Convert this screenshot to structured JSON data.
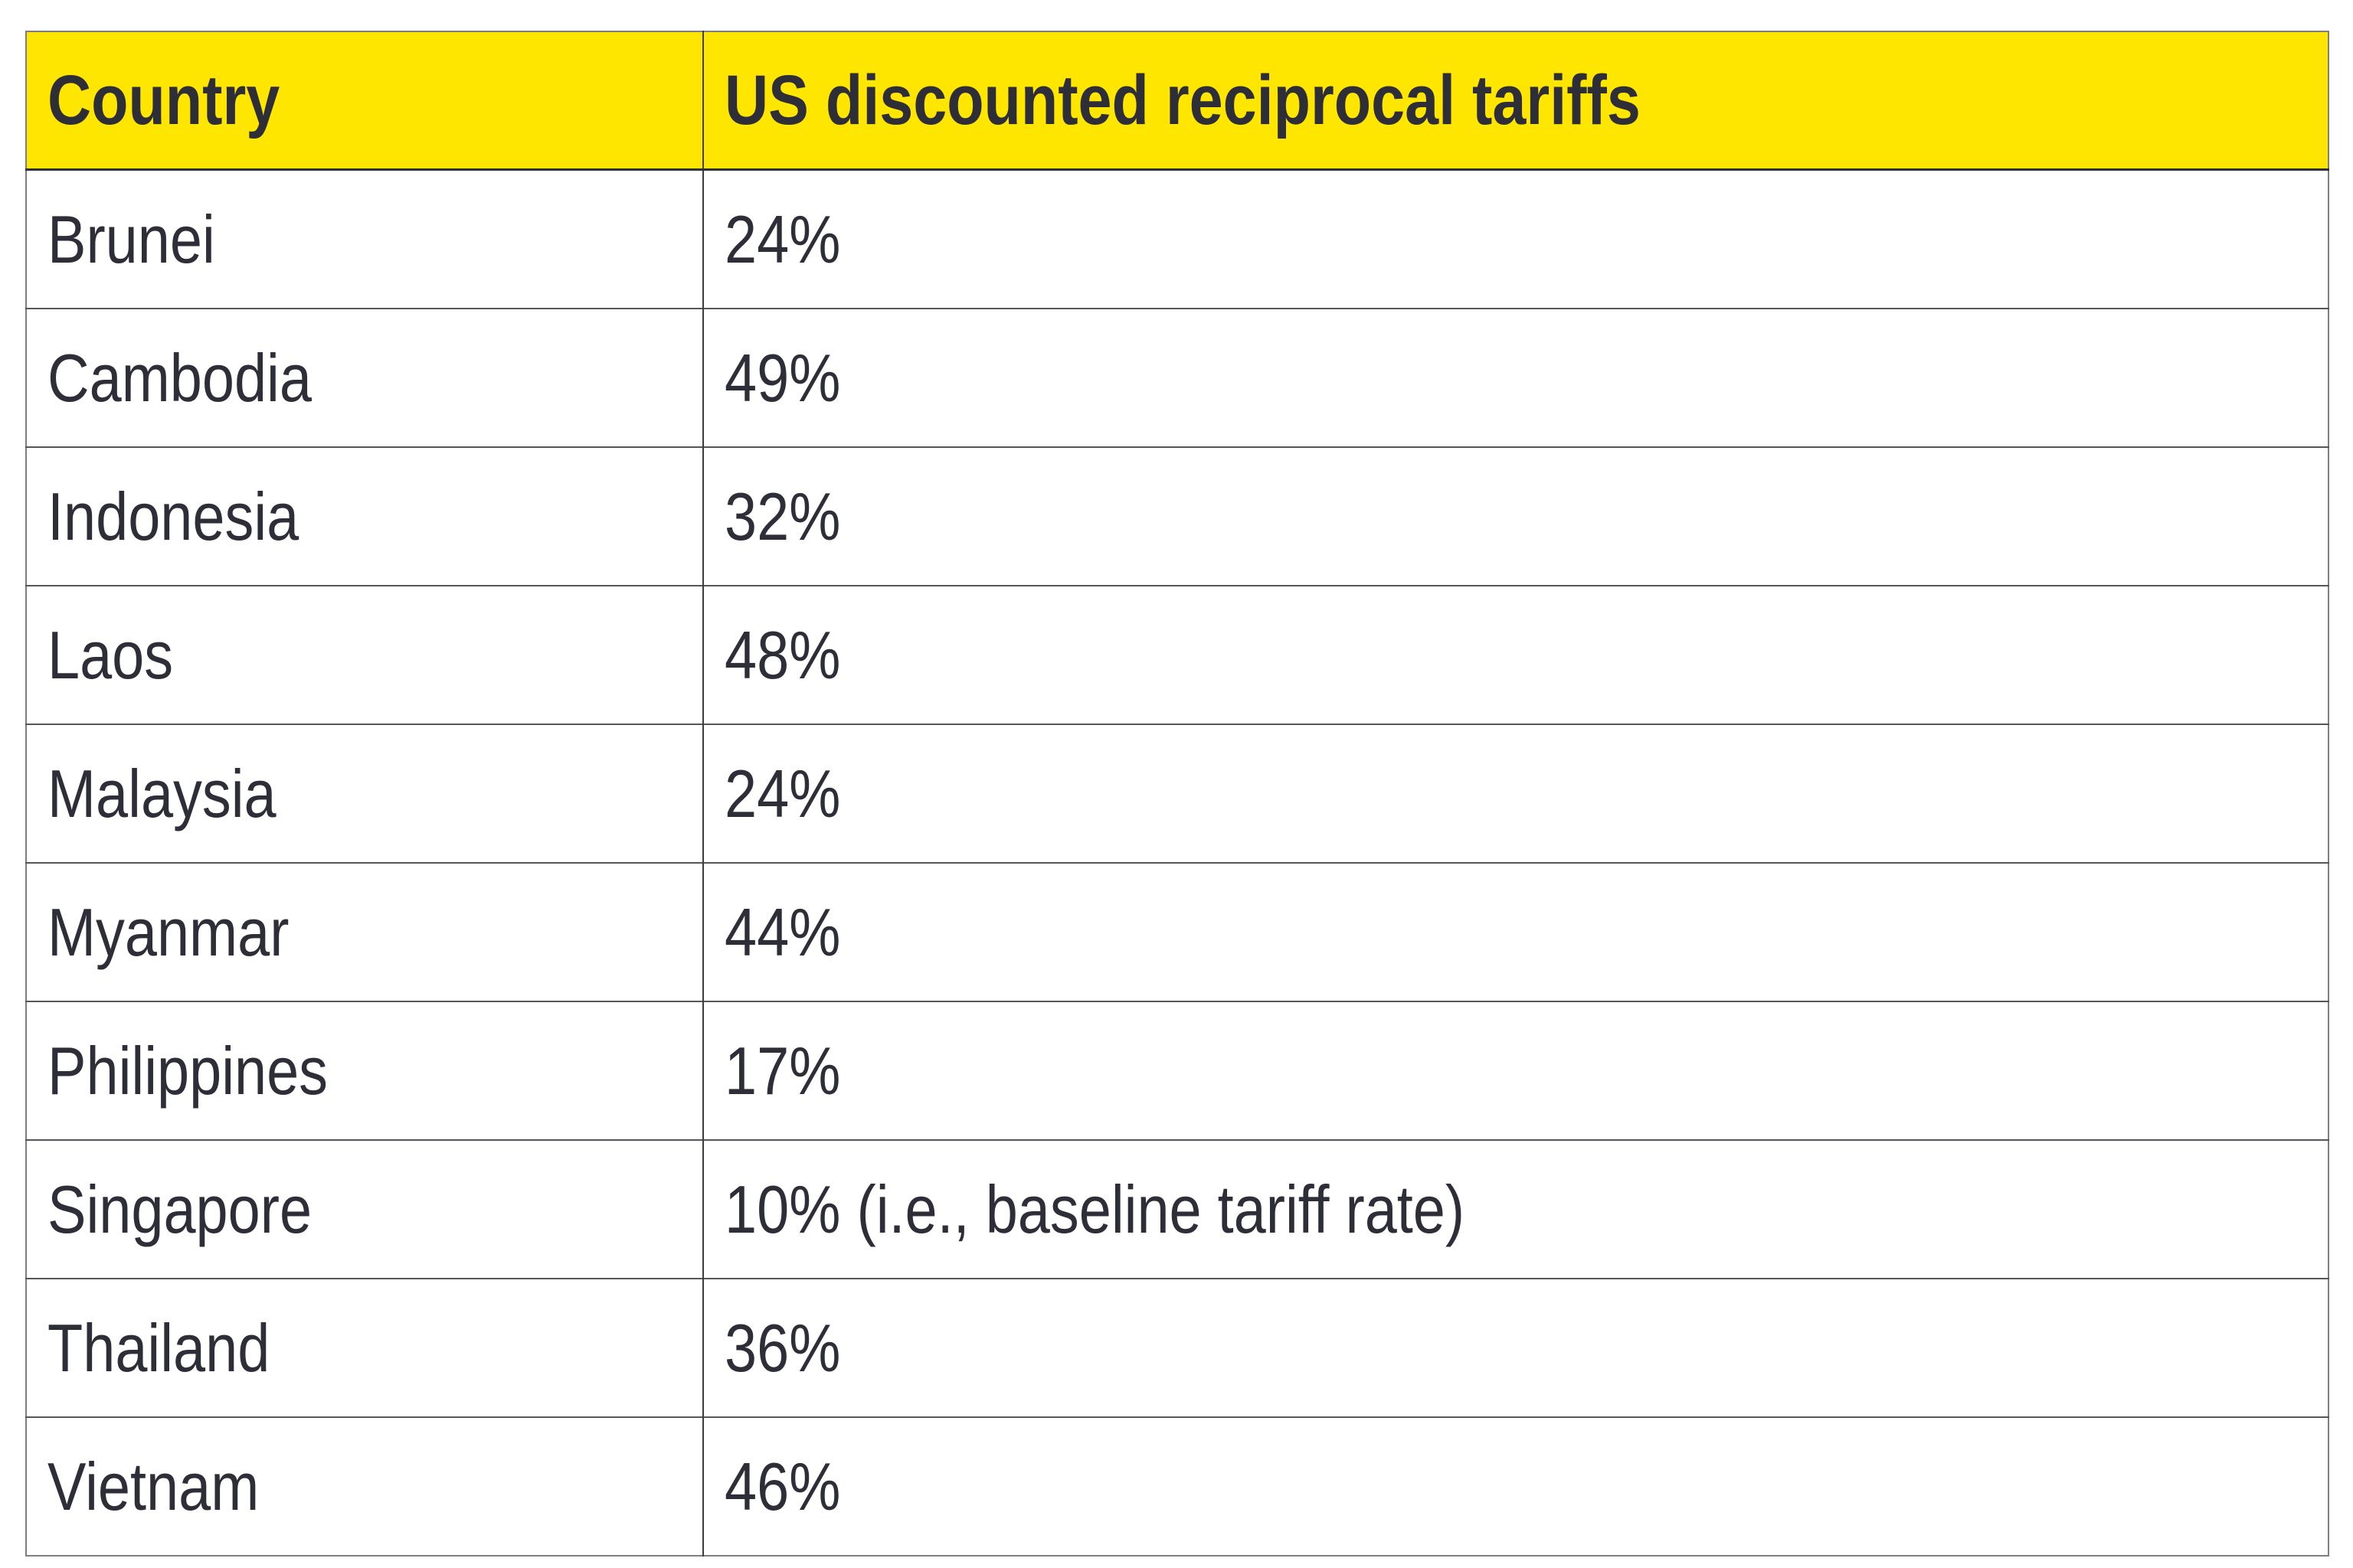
{
  "chart_data": {
    "type": "table",
    "title": "",
    "columns": [
      "Country",
      "US discounted reciprocal tariffs"
    ],
    "rows": [
      [
        "Brunei",
        "24%"
      ],
      [
        "Cambodia",
        "49%"
      ],
      [
        "Indonesia",
        "32%"
      ],
      [
        "Laos",
        "48%"
      ],
      [
        "Malaysia",
        "24%"
      ],
      [
        "Myanmar",
        "44%"
      ],
      [
        "Philippines",
        "17%"
      ],
      [
        "Singapore",
        "10% (i.e., baseline tariff rate)"
      ],
      [
        "Thailand",
        "36%"
      ],
      [
        "Vietnam",
        "46%"
      ]
    ]
  },
  "colors": {
    "header_background": "#ffe600",
    "text": "#2e2e38",
    "outer_border": "#7e7e7e",
    "row_border": "#55565c",
    "column_divider": "#3c3d44"
  }
}
